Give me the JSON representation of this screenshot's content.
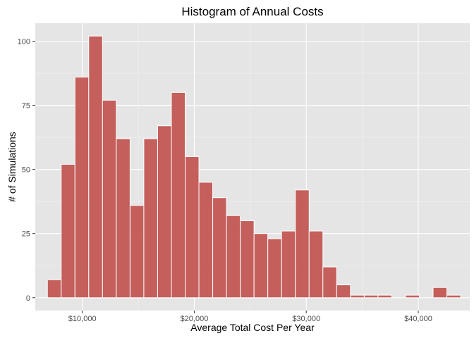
{
  "chart_data": {
    "type": "bar",
    "subtype": "histogram",
    "title": "Histogram of Annual Costs",
    "xlabel": "Average Total Cost Per Year",
    "ylabel": "# of Simulations",
    "xlim": [
      5800,
      44600
    ],
    "ylim": [
      -5,
      107
    ],
    "x_ticks": [
      10000,
      20000,
      30000,
      40000
    ],
    "x_tick_labels": [
      "$10,000",
      "$20,000",
      "$30,000",
      "$40,000"
    ],
    "y_ticks": [
      0,
      25,
      50,
      75,
      100
    ],
    "y_tick_labels": [
      "0",
      "25",
      "50",
      "75",
      "100"
    ],
    "bin_width": 1230,
    "bin_centers": [
      7500,
      8730,
      9960,
      11190,
      12420,
      13650,
      14880,
      16110,
      17340,
      18570,
      19800,
      21030,
      22260,
      23490,
      24720,
      25950,
      27180,
      28410,
      29640,
      30870,
      32100,
      33330,
      34560,
      35790,
      37020,
      38250,
      39480,
      40710,
      41940,
      43170
    ],
    "counts": [
      7,
      52,
      86,
      102,
      77,
      62,
      36,
      62,
      67,
      80,
      55,
      45,
      39,
      32,
      30,
      25,
      23,
      26,
      42,
      26,
      12,
      5,
      1,
      1,
      1,
      0,
      1,
      0,
      4,
      1
    ],
    "colors": {
      "bar_fill": "#c0504d",
      "bar_stroke": "#ffffff",
      "panel_bg": "#e5e5e5",
      "grid_major": "#ffffff",
      "grid_minor": "#f2f2f2"
    },
    "grid": true,
    "legend": "none"
  }
}
